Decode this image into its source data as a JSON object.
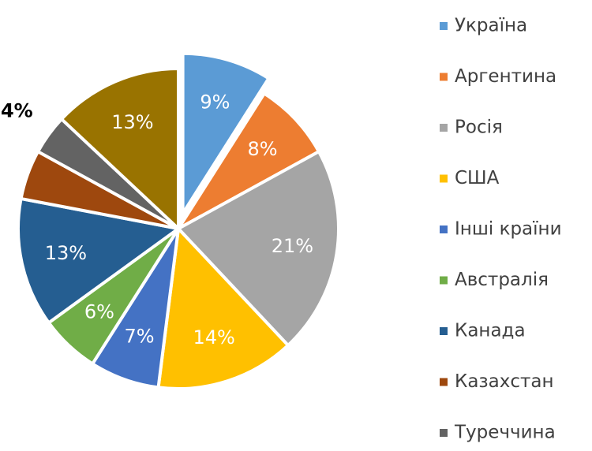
{
  "chart_data": {
    "type": "pie",
    "categories": [
      "Україна",
      "Аргентина",
      "Росія",
      "США",
      "Інші країни",
      "Австралія",
      "Канада",
      "Казахстан",
      "Туреччина",
      null
    ],
    "values": [
      9,
      8,
      21,
      14,
      7,
      6,
      13,
      5,
      4,
      13
    ],
    "value_labels": [
      "9%",
      "8%",
      "21%",
      "14%",
      "7%",
      "6%",
      "13%",
      null,
      "4%",
      "13%"
    ],
    "colors": [
      "#5b9bd5",
      "#ed7d31",
      "#a5a5a5",
      "#ffc000",
      "#4472c4",
      "#70ad47",
      "#255e91",
      "#9e480e",
      "#636363",
      "#997300"
    ]
  }
}
